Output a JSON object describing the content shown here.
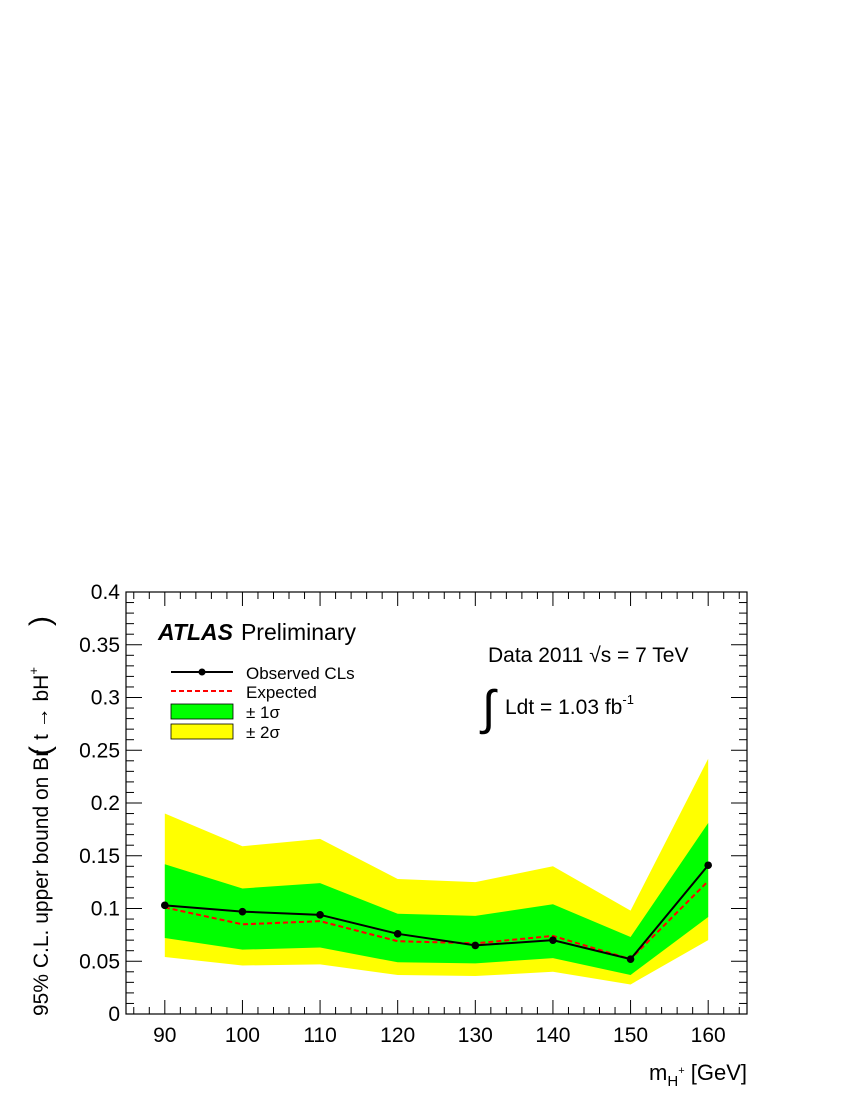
{
  "chart_data": {
    "type": "line",
    "title": "",
    "xlabel_main": "m",
    "xlabel_sub": "H",
    "xlabel_sup": "+",
    "xlabel_unit": " [GeV]",
    "ylabel_main": "95% C.L. upper bound on Br",
    "ylabel_inner": "t → bH",
    "ylabel_sup": "+",
    "xlim": [
      85,
      165
    ],
    "ylim": [
      0,
      0.4
    ],
    "x_ticks": [
      90,
      100,
      110,
      120,
      130,
      140,
      150,
      160
    ],
    "x_tick_labels": [
      "90",
      "100",
      "110",
      "120",
      "130",
      "140",
      "150",
      "160"
    ],
    "y_ticks": [
      0,
      0.05,
      0.1,
      0.15,
      0.2,
      0.25,
      0.3,
      0.35,
      0.4
    ],
    "y_tick_labels": [
      "0",
      "0.05",
      "0.1",
      "0.15",
      "0.2",
      "0.25",
      "0.3",
      "0.35",
      "0.4"
    ],
    "x": [
      90,
      100,
      110,
      120,
      130,
      140,
      150,
      160
    ],
    "series": [
      {
        "name": "Observed CLs",
        "style": "solid-with-markers",
        "color": "#000000",
        "values": [
          0.103,
          0.097,
          0.094,
          0.076,
          0.065,
          0.07,
          0.052,
          0.141
        ]
      },
      {
        "name": "Expected",
        "style": "dashed",
        "color": "#ff0000",
        "values": [
          0.101,
          0.085,
          0.088,
          0.069,
          0.067,
          0.074,
          0.052,
          0.126
        ]
      }
    ],
    "bands": [
      {
        "name": "± 2σ",
        "color": "#ffff00",
        "lower": [
          0.054,
          0.046,
          0.047,
          0.037,
          0.036,
          0.04,
          0.028,
          0.07
        ],
        "upper": [
          0.19,
          0.159,
          0.166,
          0.128,
          0.125,
          0.14,
          0.098,
          0.242
        ]
      },
      {
        "name": "± 1σ",
        "color": "#00ff00",
        "lower": [
          0.072,
          0.061,
          0.063,
          0.049,
          0.048,
          0.053,
          0.037,
          0.092
        ],
        "upper": [
          0.142,
          0.119,
          0.124,
          0.095,
          0.093,
          0.104,
          0.073,
          0.181
        ]
      }
    ],
    "legend": [
      {
        "label": "Observed CLs",
        "kind": "line-marker",
        "color": "#000000"
      },
      {
        "label": "Expected",
        "kind": "dashed",
        "color": "#ff0000"
      },
      {
        "label": "± 1σ",
        "kind": "box",
        "color": "#00ff00"
      },
      {
        "label": "± 2σ",
        "kind": "box",
        "color": "#ffff00"
      }
    ],
    "legend_position": "top-left",
    "annotations": {
      "experiment": "ATLAS",
      "status": "Preliminary",
      "data_prefix": "Data 2011 ",
      "sqrt_symbol": "√",
      "energy": "s = 7 TeV",
      "lumi_integral": "∫",
      "lumi_text": "Ldt = 1.03 fb",
      "lumi_sup": "-1"
    },
    "grid": false
  }
}
